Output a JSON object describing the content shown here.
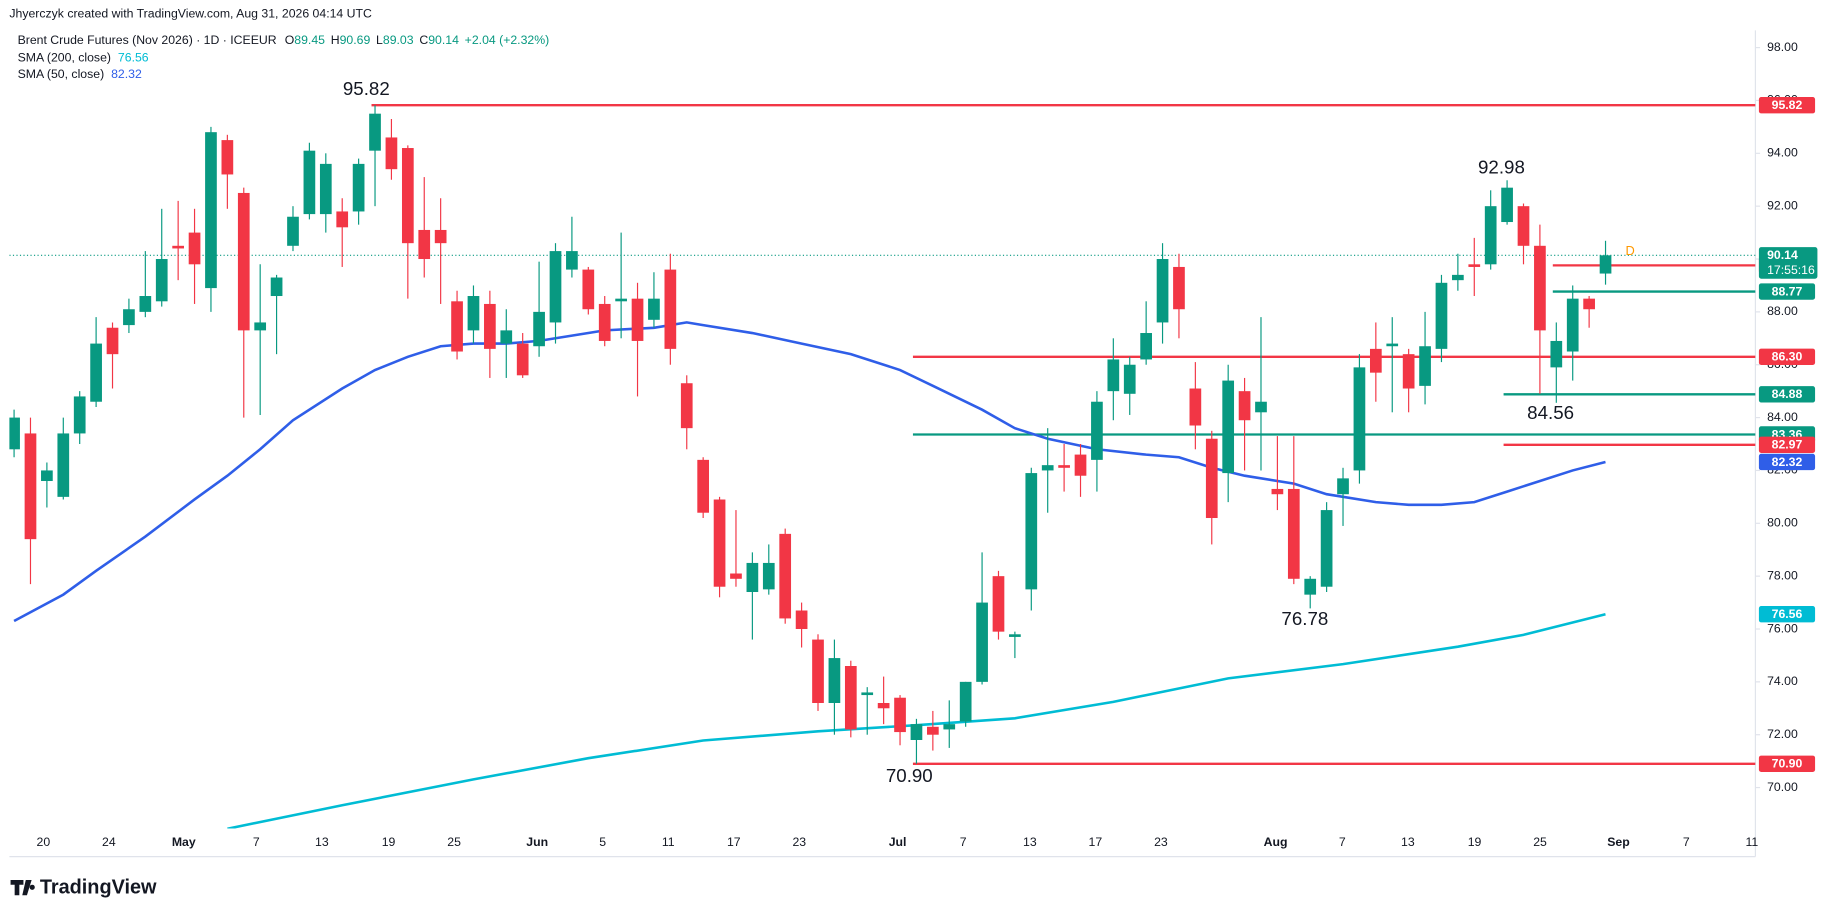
{
  "chart_data": {
    "type": "candlestick",
    "attribution": "Jhyerczyk created with TradingView.com, Aug 31, 2026 04:14 UTC",
    "title": "Brent Crude Futures (Nov 2026) · 1D · ICEEUR",
    "ohlc_legend": [
      {
        "label": "O",
        "value": 89.45
      },
      {
        "label": "H",
        "value": 90.69
      },
      {
        "label": "L",
        "value": 89.03
      },
      {
        "label": "C",
        "value": 90.14
      }
    ],
    "change": "+2.04 (+2.32%)",
    "up_color": "#089981",
    "down_color": "#f23645",
    "ylim": [
      68.45,
      98.65
    ],
    "yticks": [
      {
        "value": 70,
        "label": "70.00"
      },
      {
        "value": 72,
        "label": "72.00"
      },
      {
        "value": 74,
        "label": "74.00"
      },
      {
        "value": 76,
        "label": "76.00"
      },
      {
        "value": 78,
        "label": "78.00"
      },
      {
        "value": 80,
        "label": "80.00"
      },
      {
        "value": 82,
        "label": "82.00"
      },
      {
        "value": 84,
        "label": "84.00"
      },
      {
        "value": 86,
        "label": "86.00"
      },
      {
        "value": 88,
        "label": "88.00"
      },
      {
        "value": 90,
        "label": "90.00"
      },
      {
        "value": 92,
        "label": "92.00"
      },
      {
        "value": 94,
        "label": "94.00"
      },
      {
        "value": 96,
        "label": "96.00"
      },
      {
        "value": 98,
        "label": "98.00"
      }
    ],
    "grid": false,
    "xtick_labels": [
      "20",
      "24",
      "May",
      "7",
      "13",
      "19",
      "25",
      "Jun",
      "5",
      "11",
      "17",
      "23",
      "Jul",
      "7",
      "13",
      "17",
      "23",
      "Aug",
      "7",
      "13",
      "19",
      "25",
      "Sep",
      "7",
      "11"
    ],
    "candles": [
      {
        "o": 82.8,
        "h": 84.3,
        "l": 82.5,
        "c": 84.0
      },
      {
        "o": 83.4,
        "h": 84.0,
        "l": 77.7,
        "c": 79.4
      },
      {
        "o": 81.6,
        "h": 82.3,
        "l": 80.6,
        "c": 82.0
      },
      {
        "o": 81.0,
        "h": 84.0,
        "l": 80.9,
        "c": 83.4
      },
      {
        "o": 83.4,
        "h": 85.0,
        "l": 83.0,
        "c": 84.8
      },
      {
        "o": 84.6,
        "h": 87.8,
        "l": 84.4,
        "c": 86.8
      },
      {
        "o": 87.4,
        "h": 87.6,
        "l": 85.1,
        "c": 86.4
      },
      {
        "o": 87.5,
        "h": 88.5,
        "l": 87.2,
        "c": 88.1
      },
      {
        "o": 88.0,
        "h": 90.3,
        "l": 87.8,
        "c": 88.6
      },
      {
        "o": 88.4,
        "h": 91.9,
        "l": 88.2,
        "c": 90.0
      },
      {
        "o": 90.5,
        "h": 92.2,
        "l": 89.2,
        "c": 90.4
      },
      {
        "o": 91.0,
        "h": 91.9,
        "l": 88.3,
        "c": 89.8
      },
      {
        "o": 88.9,
        "h": 95.0,
        "l": 88.0,
        "c": 94.8
      },
      {
        "o": 94.5,
        "h": 94.7,
        "l": 91.9,
        "c": 93.2
      },
      {
        "o": 92.5,
        "h": 92.7,
        "l": 84.0,
        "c": 87.3
      },
      {
        "o": 87.3,
        "h": 89.8,
        "l": 84.1,
        "c": 87.6
      },
      {
        "o": 88.6,
        "h": 89.4,
        "l": 86.4,
        "c": 89.3
      },
      {
        "o": 90.5,
        "h": 92.0,
        "l": 90.3,
        "c": 91.6
      },
      {
        "o": 91.7,
        "h": 94.4,
        "l": 91.5,
        "c": 94.1
      },
      {
        "o": 91.7,
        "h": 94.0,
        "l": 91.0,
        "c": 93.6
      },
      {
        "o": 91.8,
        "h": 92.3,
        "l": 89.7,
        "c": 91.2
      },
      {
        "o": 91.8,
        "h": 93.8,
        "l": 91.3,
        "c": 93.6
      },
      {
        "o": 94.1,
        "h": 95.82,
        "l": 92.0,
        "c": 95.5
      },
      {
        "o": 94.6,
        "h": 95.3,
        "l": 93.0,
        "c": 93.4
      },
      {
        "o": 94.2,
        "h": 94.3,
        "l": 88.5,
        "c": 90.6
      },
      {
        "o": 91.1,
        "h": 93.1,
        "l": 89.3,
        "c": 90.0
      },
      {
        "o": 91.1,
        "h": 92.3,
        "l": 88.3,
        "c": 90.6
      },
      {
        "o": 88.4,
        "h": 88.8,
        "l": 86.2,
        "c": 86.5
      },
      {
        "o": 87.3,
        "h": 89.0,
        "l": 86.8,
        "c": 88.6
      },
      {
        "o": 88.3,
        "h": 88.8,
        "l": 85.5,
        "c": 86.6
      },
      {
        "o": 86.8,
        "h": 88.1,
        "l": 85.5,
        "c": 87.3
      },
      {
        "o": 86.8,
        "h": 87.2,
        "l": 85.5,
        "c": 85.6
      },
      {
        "o": 86.7,
        "h": 89.9,
        "l": 86.3,
        "c": 88.0
      },
      {
        "o": 87.6,
        "h": 90.6,
        "l": 86.8,
        "c": 90.3
      },
      {
        "o": 89.6,
        "h": 91.6,
        "l": 89.3,
        "c": 90.3
      },
      {
        "o": 89.6,
        "h": 89.7,
        "l": 87.9,
        "c": 88.1
      },
      {
        "o": 88.3,
        "h": 88.6,
        "l": 86.7,
        "c": 86.9
      },
      {
        "o": 88.4,
        "h": 91.0,
        "l": 87.0,
        "c": 88.5
      },
      {
        "o": 88.5,
        "h": 89.1,
        "l": 84.8,
        "c": 86.9
      },
      {
        "o": 87.7,
        "h": 89.5,
        "l": 87.4,
        "c": 88.5
      },
      {
        "o": 89.6,
        "h": 90.2,
        "l": 86.0,
        "c": 86.6
      },
      {
        "o": 85.3,
        "h": 85.6,
        "l": 82.8,
        "c": 83.6
      },
      {
        "o": 82.4,
        "h": 82.5,
        "l": 80.2,
        "c": 80.4
      },
      {
        "o": 80.9,
        "h": 81.0,
        "l": 77.2,
        "c": 77.6
      },
      {
        "o": 78.1,
        "h": 80.5,
        "l": 77.6,
        "c": 77.9
      },
      {
        "o": 77.4,
        "h": 78.9,
        "l": 75.6,
        "c": 78.5
      },
      {
        "o": 77.5,
        "h": 79.2,
        "l": 77.3,
        "c": 78.5
      },
      {
        "o": 79.6,
        "h": 79.8,
        "l": 76.2,
        "c": 76.4
      },
      {
        "o": 76.7,
        "h": 77.0,
        "l": 75.3,
        "c": 76.0
      },
      {
        "o": 75.6,
        "h": 75.8,
        "l": 72.9,
        "c": 73.2
      },
      {
        "o": 73.2,
        "h": 75.6,
        "l": 72.0,
        "c": 74.9
      },
      {
        "o": 74.6,
        "h": 74.8,
        "l": 71.9,
        "c": 72.2
      },
      {
        "o": 73.5,
        "h": 73.8,
        "l": 72.0,
        "c": 73.6
      },
      {
        "o": 73.2,
        "h": 74.2,
        "l": 72.4,
        "c": 73.0
      },
      {
        "o": 73.4,
        "h": 73.5,
        "l": 71.6,
        "c": 72.1
      },
      {
        "o": 71.8,
        "h": 72.6,
        "l": 70.9,
        "c": 72.4
      },
      {
        "o": 72.3,
        "h": 72.9,
        "l": 71.4,
        "c": 72.0
      },
      {
        "o": 72.2,
        "h": 73.3,
        "l": 71.5,
        "c": 72.4
      },
      {
        "o": 72.5,
        "h": 74.0,
        "l": 72.3,
        "c": 74.0
      },
      {
        "o": 74.0,
        "h": 78.9,
        "l": 73.9,
        "c": 77.0
      },
      {
        "o": 78.0,
        "h": 78.2,
        "l": 75.6,
        "c": 75.9
      },
      {
        "o": 75.7,
        "h": 75.9,
        "l": 74.9,
        "c": 75.8
      },
      {
        "o": 77.5,
        "h": 82.1,
        "l": 76.7,
        "c": 81.9
      },
      {
        "o": 82.0,
        "h": 83.6,
        "l": 80.4,
        "c": 82.2
      },
      {
        "o": 82.2,
        "h": 83.0,
        "l": 81.2,
        "c": 82.1
      },
      {
        "o": 82.6,
        "h": 83.0,
        "l": 81.0,
        "c": 81.8
      },
      {
        "o": 82.4,
        "h": 85.0,
        "l": 81.2,
        "c": 84.6
      },
      {
        "o": 85.0,
        "h": 87.0,
        "l": 83.9,
        "c": 86.2
      },
      {
        "o": 84.9,
        "h": 86.3,
        "l": 84.1,
        "c": 86.0
      },
      {
        "o": 86.2,
        "h": 88.4,
        "l": 86.0,
        "c": 87.2
      },
      {
        "o": 87.6,
        "h": 90.6,
        "l": 86.8,
        "c": 90.0
      },
      {
        "o": 89.7,
        "h": 90.2,
        "l": 87.0,
        "c": 88.1
      },
      {
        "o": 85.1,
        "h": 86.1,
        "l": 82.8,
        "c": 83.7
      },
      {
        "o": 83.2,
        "h": 83.5,
        "l": 79.2,
        "c": 80.2
      },
      {
        "o": 81.9,
        "h": 86.0,
        "l": 80.8,
        "c": 85.4
      },
      {
        "o": 85.0,
        "h": 85.5,
        "l": 82.0,
        "c": 83.9
      },
      {
        "o": 84.2,
        "h": 87.8,
        "l": 82.0,
        "c": 84.6
      },
      {
        "o": 81.3,
        "h": 83.3,
        "l": 80.5,
        "c": 81.1
      },
      {
        "o": 81.3,
        "h": 83.3,
        "l": 77.7,
        "c": 77.9
      },
      {
        "o": 77.3,
        "h": 78.0,
        "l": 76.78,
        "c": 77.9
      },
      {
        "o": 77.6,
        "h": 80.8,
        "l": 77.4,
        "c": 80.5
      },
      {
        "o": 81.1,
        "h": 82.1,
        "l": 79.9,
        "c": 81.7
      },
      {
        "o": 82.0,
        "h": 86.4,
        "l": 81.5,
        "c": 85.9
      },
      {
        "o": 86.6,
        "h": 87.6,
        "l": 84.6,
        "c": 85.7
      },
      {
        "o": 86.7,
        "h": 87.8,
        "l": 84.2,
        "c": 86.8
      },
      {
        "o": 86.4,
        "h": 86.6,
        "l": 84.2,
        "c": 85.1
      },
      {
        "o": 85.2,
        "h": 88.0,
        "l": 84.5,
        "c": 86.7
      },
      {
        "o": 86.6,
        "h": 89.4,
        "l": 86.1,
        "c": 89.1
      },
      {
        "o": 89.2,
        "h": 90.2,
        "l": 88.8,
        "c": 89.4
      },
      {
        "o": 89.8,
        "h": 90.8,
        "l": 88.6,
        "c": 89.7
      },
      {
        "o": 89.8,
        "h": 92.6,
        "l": 89.6,
        "c": 92.0
      },
      {
        "o": 91.4,
        "h": 92.98,
        "l": 91.3,
        "c": 92.7
      },
      {
        "o": 92.0,
        "h": 92.1,
        "l": 89.8,
        "c": 90.5
      },
      {
        "o": 90.5,
        "h": 91.3,
        "l": 84.9,
        "c": 87.3
      },
      {
        "o": 85.9,
        "h": 87.6,
        "l": 84.56,
        "c": 86.9
      },
      {
        "o": 86.5,
        "h": 89.0,
        "l": 85.4,
        "c": 88.5
      },
      {
        "o": 88.5,
        "h": 88.6,
        "l": 87.4,
        "c": 88.1
      },
      {
        "o": 89.45,
        "h": 90.69,
        "l": 89.03,
        "c": 90.14
      }
    ],
    "indicators": [
      {
        "name": "SMA (200, close)",
        "last": 76.56,
        "color": "#00bcd4",
        "x": [
          13,
          20,
          28,
          35,
          42,
          49,
          55,
          61,
          67,
          74,
          81,
          88,
          92,
          97
        ],
        "values": [
          68.44,
          69.33,
          70.31,
          71.11,
          71.78,
          72.13,
          72.36,
          72.62,
          73.24,
          74.13,
          74.67,
          75.33,
          75.78,
          76.56
        ]
      },
      {
        "name": "SMA (50, close)",
        "last": 82.32,
        "color": "#2f5ee8",
        "x": [
          0,
          3,
          5,
          8,
          11,
          13,
          15,
          17,
          20,
          22,
          24,
          26,
          28,
          30,
          32,
          34,
          36,
          39,
          41,
          42,
          45,
          48,
          51,
          54,
          56,
          59,
          61,
          63,
          66,
          69,
          71,
          73,
          75,
          78,
          80,
          83,
          85,
          87,
          89,
          91,
          93,
          95,
          97
        ],
        "values": [
          76.3,
          77.3,
          78.2,
          79.5,
          80.9,
          81.8,
          82.8,
          83.9,
          85.1,
          85.8,
          86.3,
          86.7,
          86.8,
          86.8,
          86.9,
          87.1,
          87.3,
          87.4,
          87.6,
          87.5,
          87.2,
          86.8,
          86.4,
          85.8,
          85.2,
          84.3,
          83.6,
          83.2,
          82.8,
          82.6,
          82.5,
          82.1,
          81.8,
          81.5,
          81.1,
          80.8,
          80.7,
          80.7,
          80.8,
          81.2,
          81.6,
          82.0,
          82.32
        ]
      }
    ],
    "levels": [
      {
        "value": 95.82,
        "color": "#f23645"
      },
      {
        "value": 86.3,
        "label": "86.30",
        "color": "#f23645"
      },
      {
        "value": 83.36,
        "color": "#089981"
      },
      {
        "value": 70.9,
        "label": "70.90",
        "color": "#f23645"
      },
      {
        "value": 89.76,
        "color": "#f23645"
      },
      {
        "value": 88.77,
        "color": "#089981"
      },
      {
        "value": 84.88,
        "color": "#089981"
      },
      {
        "value": 82.97,
        "color": "#f23645"
      }
    ],
    "price_line": {
      "value": 90.14,
      "countdown": "17:55:16",
      "color": "#089981"
    },
    "marker": "D",
    "annotations": [
      "95.82",
      "92.98",
      "84.56",
      "76.78",
      "70.90"
    ],
    "brand": "TradingView"
  }
}
